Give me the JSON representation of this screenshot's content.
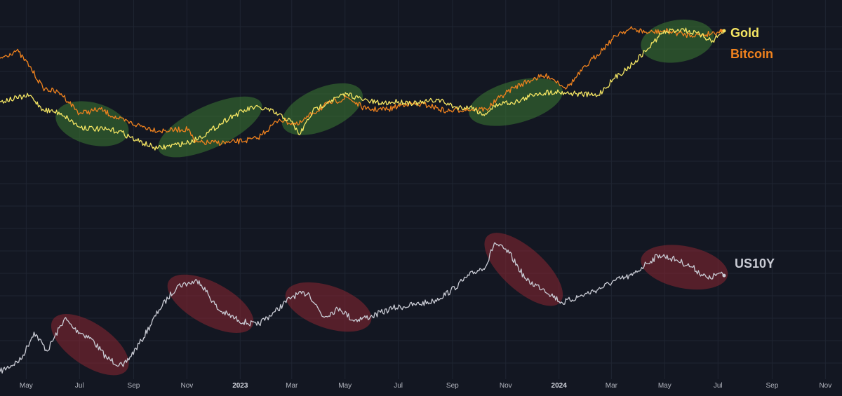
{
  "chart_data": {
    "type": "line",
    "title": "",
    "grid": true,
    "legend": "right, at line ends",
    "x_range": [
      "2022-04-01",
      "2024-11-20"
    ],
    "xticks": [
      {
        "label": "May",
        "date": "2022-05-01"
      },
      {
        "label": "Jul",
        "date": "2022-07-01"
      },
      {
        "label": "Sep",
        "date": "2022-09-01"
      },
      {
        "label": "Nov",
        "date": "2022-11-01"
      },
      {
        "label": "2023",
        "date": "2023-01-01"
      },
      {
        "label": "Mar",
        "date": "2023-03-01"
      },
      {
        "label": "May",
        "date": "2023-05-01"
      },
      {
        "label": "Jul",
        "date": "2023-07-01"
      },
      {
        "label": "Sep",
        "date": "2023-09-01"
      },
      {
        "label": "Nov",
        "date": "2023-11-01"
      },
      {
        "label": "2024",
        "date": "2024-01-01"
      },
      {
        "label": "Mar",
        "date": "2024-03-01"
      },
      {
        "label": "May",
        "date": "2024-05-01"
      },
      {
        "label": "Jul",
        "date": "2024-07-01"
      },
      {
        "label": "Sep",
        "date": "2024-09-01"
      },
      {
        "label": "Nov",
        "date": "2024-11-01"
      }
    ],
    "series": [
      {
        "name": "Gold",
        "color": "#f5e663",
        "x": [
          "2022-04-01",
          "2022-05-05",
          "2022-05-20",
          "2022-06-10",
          "2022-07-01",
          "2022-07-20",
          "2022-08-15",
          "2022-09-05",
          "2022-09-28",
          "2022-10-20",
          "2022-11-03",
          "2022-11-25",
          "2022-12-20",
          "2023-01-15",
          "2023-02-01",
          "2023-02-28",
          "2023-03-10",
          "2023-03-25",
          "2023-04-12",
          "2023-05-04",
          "2023-05-20",
          "2023-06-10",
          "2023-07-01",
          "2023-07-25",
          "2023-08-15",
          "2023-09-05",
          "2023-09-25",
          "2023-10-05",
          "2023-10-25",
          "2023-11-15",
          "2023-12-05",
          "2023-12-28",
          "2024-01-20",
          "2024-02-14",
          "2024-03-05",
          "2024-03-25",
          "2024-04-12",
          "2024-04-28",
          "2024-05-20",
          "2024-06-10",
          "2024-06-25",
          "2024-07-08"
        ],
        "y": [
          0.59,
          0.62,
          0.55,
          0.53,
          0.46,
          0.45,
          0.44,
          0.39,
          0.35,
          0.37,
          0.38,
          0.43,
          0.51,
          0.56,
          0.55,
          0.49,
          0.42,
          0.54,
          0.59,
          0.63,
          0.6,
          0.58,
          0.59,
          0.58,
          0.6,
          0.56,
          0.56,
          0.52,
          0.58,
          0.59,
          0.63,
          0.64,
          0.63,
          0.62,
          0.71,
          0.78,
          0.86,
          0.94,
          0.96,
          0.93,
          0.9,
          0.95
        ]
      },
      {
        "name": "Bitcoin",
        "color": "#f0821e",
        "x": [
          "2022-04-01",
          "2022-04-20",
          "2022-05-05",
          "2022-05-20",
          "2022-06-10",
          "2022-07-01",
          "2022-07-25",
          "2022-08-15",
          "2022-09-05",
          "2022-10-01",
          "2022-11-03",
          "2022-11-10",
          "2022-12-20",
          "2023-01-20",
          "2023-02-15",
          "2023-03-08",
          "2023-03-25",
          "2023-04-12",
          "2023-05-04",
          "2023-05-25",
          "2023-06-20",
          "2023-07-10",
          "2023-08-05",
          "2023-08-25",
          "2023-09-15",
          "2023-10-10",
          "2023-10-25",
          "2023-11-10",
          "2023-12-05",
          "2023-12-20",
          "2024-01-10",
          "2024-02-05",
          "2024-02-25",
          "2024-03-10",
          "2024-03-25",
          "2024-04-12",
          "2024-05-01",
          "2024-05-25",
          "2024-06-15",
          "2024-07-05"
        ],
        "y": [
          0.81,
          0.85,
          0.77,
          0.66,
          0.63,
          0.53,
          0.55,
          0.5,
          0.47,
          0.44,
          0.45,
          0.38,
          0.38,
          0.4,
          0.5,
          0.47,
          0.53,
          0.58,
          0.61,
          0.55,
          0.55,
          0.58,
          0.57,
          0.54,
          0.55,
          0.55,
          0.61,
          0.66,
          0.71,
          0.72,
          0.66,
          0.79,
          0.88,
          0.94,
          0.96,
          0.94,
          0.95,
          0.93,
          0.93,
          0.95
        ]
      },
      {
        "name": "US10Y",
        "color": "#c9cbd4",
        "x": [
          "2022-04-01",
          "2022-04-25",
          "2022-05-10",
          "2022-05-25",
          "2022-06-14",
          "2022-06-25",
          "2022-07-15",
          "2022-08-01",
          "2022-08-20",
          "2022-09-10",
          "2022-09-30",
          "2022-10-21",
          "2022-11-15",
          "2022-12-07",
          "2022-12-30",
          "2023-01-20",
          "2023-02-10",
          "2023-03-02",
          "2023-03-20",
          "2023-04-06",
          "2023-04-25",
          "2023-05-10",
          "2023-05-30",
          "2023-06-25",
          "2023-07-20",
          "2023-08-10",
          "2023-08-30",
          "2023-09-20",
          "2023-10-10",
          "2023-10-19",
          "2023-11-05",
          "2023-11-25",
          "2023-12-15",
          "2024-01-05",
          "2024-01-25",
          "2024-02-15",
          "2024-03-05",
          "2024-03-25",
          "2024-04-10",
          "2024-04-25",
          "2024-05-15",
          "2024-06-01",
          "2024-06-20",
          "2024-07-01",
          "2024-07-08"
        ],
        "y": [
          0.06,
          0.13,
          0.29,
          0.18,
          0.37,
          0.31,
          0.25,
          0.14,
          0.09,
          0.24,
          0.42,
          0.56,
          0.59,
          0.42,
          0.36,
          0.33,
          0.41,
          0.5,
          0.52,
          0.38,
          0.43,
          0.36,
          0.38,
          0.43,
          0.45,
          0.47,
          0.53,
          0.62,
          0.68,
          0.81,
          0.75,
          0.59,
          0.54,
          0.46,
          0.5,
          0.54,
          0.59,
          0.62,
          0.69,
          0.74,
          0.71,
          0.67,
          0.6,
          0.63,
          0.62
        ]
      }
    ],
    "highlights": [
      {
        "color": "#3c7a33",
        "meaning": "positive",
        "from": "2022-06-15",
        "to": "2022-08-15",
        "series": "Gold"
      },
      {
        "color": "#3c7a33",
        "meaning": "positive",
        "from": "2022-10-10",
        "to": "2023-01-15",
        "series": "Gold"
      },
      {
        "color": "#3c7a33",
        "meaning": "positive",
        "from": "2023-03-01",
        "to": "2023-05-10",
        "series": "Gold"
      },
      {
        "color": "#3c7a33",
        "meaning": "positive",
        "from": "2023-10-01",
        "to": "2023-12-25",
        "series": "Gold"
      },
      {
        "color": "#3c7a33",
        "meaning": "positive",
        "from": "2024-04-15",
        "to": "2024-06-15",
        "series": "Gold"
      },
      {
        "color": "#8c2632",
        "meaning": "negative",
        "from": "2022-06-10",
        "to": "2022-08-15",
        "series": "US10Y"
      },
      {
        "color": "#8c2632",
        "meaning": "negative",
        "from": "2022-10-21",
        "to": "2023-01-05",
        "series": "US10Y"
      },
      {
        "color": "#8c2632",
        "meaning": "negative",
        "from": "2023-03-05",
        "to": "2023-05-20",
        "series": "US10Y"
      },
      {
        "color": "#8c2632",
        "meaning": "negative",
        "from": "2023-10-19",
        "to": "2023-12-25",
        "series": "US10Y"
      },
      {
        "color": "#8c2632",
        "meaning": "negative",
        "from": "2024-04-15",
        "to": "2024-07-01",
        "series": "US10Y"
      }
    ],
    "colors": {
      "background": "#131722",
      "grid": "#1f2532",
      "axis_text": "#b2b5be"
    }
  }
}
